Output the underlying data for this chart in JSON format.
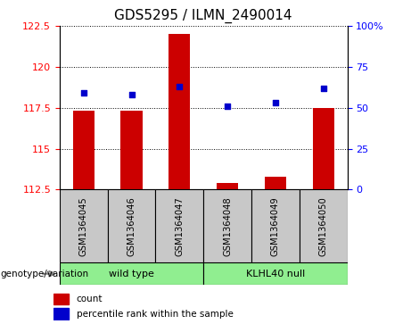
{
  "title": "GDS5295 / ILMN_2490014",
  "samples": [
    "GSM1364045",
    "GSM1364046",
    "GSM1364047",
    "GSM1364048",
    "GSM1364049",
    "GSM1364050"
  ],
  "counts": [
    117.3,
    117.3,
    122.0,
    112.9,
    113.3,
    117.5
  ],
  "percentiles": [
    59,
    58,
    63,
    51,
    53,
    62
  ],
  "ylim_left": [
    112.5,
    122.5
  ],
  "ylim_right": [
    0,
    100
  ],
  "yticks_left": [
    112.5,
    115.0,
    117.5,
    120.0,
    122.5
  ],
  "yticks_right": [
    0,
    25,
    50,
    75,
    100
  ],
  "ytick_labels_left": [
    "112.5",
    "115",
    "117.5",
    "120",
    "122.5"
  ],
  "ytick_labels_right": [
    "0",
    "25",
    "50",
    "75",
    "100%"
  ],
  "bar_color": "#cc0000",
  "dot_color": "#0000cc",
  "bar_baseline": 112.5,
  "sample_box_color": "#c8c8c8",
  "group_colors": [
    "#90ee90",
    "#90ee90"
  ],
  "group_labels": [
    "wild type",
    "KLHL40 null"
  ],
  "group_ranges": [
    [
      0,
      3
    ],
    [
      3,
      6
    ]
  ],
  "genotype_label": "genotype/variation",
  "legend_label_bar": "count",
  "legend_label_dot": "percentile rank within the sample",
  "title_fontsize": 11,
  "tick_fontsize": 8,
  "label_fontsize": 8
}
